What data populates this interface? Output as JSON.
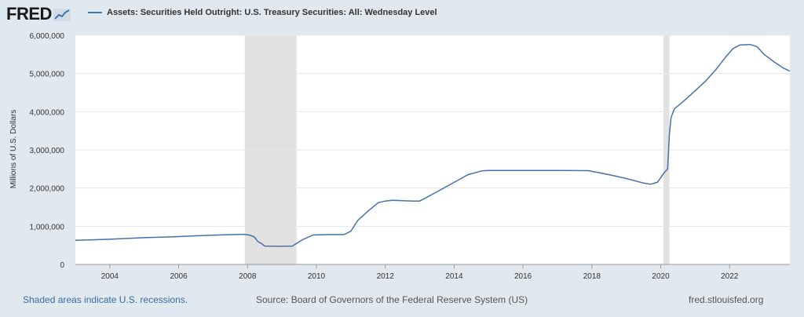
{
  "header": {
    "logo_text": "FRED",
    "legend_label": "Assets: Securities Held Outright: U.S. Treasury Securities: All: Wednesday Level"
  },
  "footer": {
    "recession_note": "Shaded areas indicate U.S. recessions.",
    "source": "Source: Board of Governors of the Federal Reserve System (US)",
    "site": "fred.stlouisfed.org"
  },
  "colors": {
    "series": "#4572a7",
    "recession": "#e1e1e1",
    "page_background": "#e1e9f0",
    "plot_background": "#ffffff",
    "grid": "#e6e6e6",
    "link": "#3b6aa0"
  },
  "chart_data": {
    "type": "line",
    "title": "",
    "xlabel": "",
    "ylabel": "Millions of U.S. Dollars",
    "xlim": [
      2003.0,
      2023.75
    ],
    "ylim": [
      0,
      6000000
    ],
    "grid": true,
    "legend_position": "top-left",
    "x_ticks": [
      2004,
      2006,
      2008,
      2010,
      2012,
      2014,
      2016,
      2018,
      2020,
      2022
    ],
    "x_tick_labels": [
      "2004",
      "2006",
      "2008",
      "2010",
      "2012",
      "2014",
      "2016",
      "2018",
      "2020",
      "2022"
    ],
    "y_ticks": [
      0,
      1000000,
      2000000,
      3000000,
      4000000,
      5000000,
      6000000
    ],
    "y_tick_labels": [
      "0",
      "1,000,000",
      "2,000,000",
      "3,000,000",
      "4,000,000",
      "5,000,000",
      "6,000,000"
    ],
    "recessions": [
      [
        2007.92,
        2009.42
      ],
      [
        2020.08,
        2020.25
      ]
    ],
    "series": [
      {
        "name": "Assets: Securities Held Outright: U.S. Treasury Securities: All: Wednesday Level",
        "points": [
          [
            2003.0,
            630000
          ],
          [
            2003.5,
            645000
          ],
          [
            2004.0,
            660000
          ],
          [
            2004.5,
            680000
          ],
          [
            2005.0,
            700000
          ],
          [
            2005.5,
            715000
          ],
          [
            2006.0,
            730000
          ],
          [
            2006.5,
            750000
          ],
          [
            2007.0,
            765000
          ],
          [
            2007.5,
            780000
          ],
          [
            2007.9,
            790000
          ],
          [
            2008.05,
            770000
          ],
          [
            2008.2,
            720000
          ],
          [
            2008.3,
            600000
          ],
          [
            2008.4,
            550000
          ],
          [
            2008.5,
            480000
          ],
          [
            2009.0,
            475000
          ],
          [
            2009.3,
            480000
          ],
          [
            2009.6,
            650000
          ],
          [
            2009.9,
            770000
          ],
          [
            2010.3,
            780000
          ],
          [
            2010.8,
            780000
          ],
          [
            2011.0,
            870000
          ],
          [
            2011.2,
            1150000
          ],
          [
            2011.5,
            1400000
          ],
          [
            2011.8,
            1620000
          ],
          [
            2012.0,
            1660000
          ],
          [
            2012.2,
            1680000
          ],
          [
            2012.5,
            1670000
          ],
          [
            2012.8,
            1660000
          ],
          [
            2013.0,
            1660000
          ],
          [
            2013.5,
            1900000
          ],
          [
            2014.0,
            2150000
          ],
          [
            2014.4,
            2350000
          ],
          [
            2014.8,
            2450000
          ],
          [
            2015.0,
            2460000
          ],
          [
            2016.0,
            2460000
          ],
          [
            2017.0,
            2460000
          ],
          [
            2017.9,
            2455000
          ],
          [
            2018.5,
            2350000
          ],
          [
            2019.0,
            2250000
          ],
          [
            2019.5,
            2130000
          ],
          [
            2019.7,
            2100000
          ],
          [
            2019.9,
            2150000
          ],
          [
            2020.1,
            2400000
          ],
          [
            2020.2,
            2500000
          ],
          [
            2020.25,
            3400000
          ],
          [
            2020.3,
            3850000
          ],
          [
            2020.4,
            4080000
          ],
          [
            2020.7,
            4300000
          ],
          [
            2021.0,
            4550000
          ],
          [
            2021.3,
            4800000
          ],
          [
            2021.6,
            5100000
          ],
          [
            2021.9,
            5450000
          ],
          [
            2022.1,
            5650000
          ],
          [
            2022.3,
            5750000
          ],
          [
            2022.6,
            5760000
          ],
          [
            2022.8,
            5700000
          ],
          [
            2023.0,
            5500000
          ],
          [
            2023.3,
            5300000
          ],
          [
            2023.55,
            5150000
          ],
          [
            2023.75,
            5060000
          ]
        ]
      }
    ]
  }
}
